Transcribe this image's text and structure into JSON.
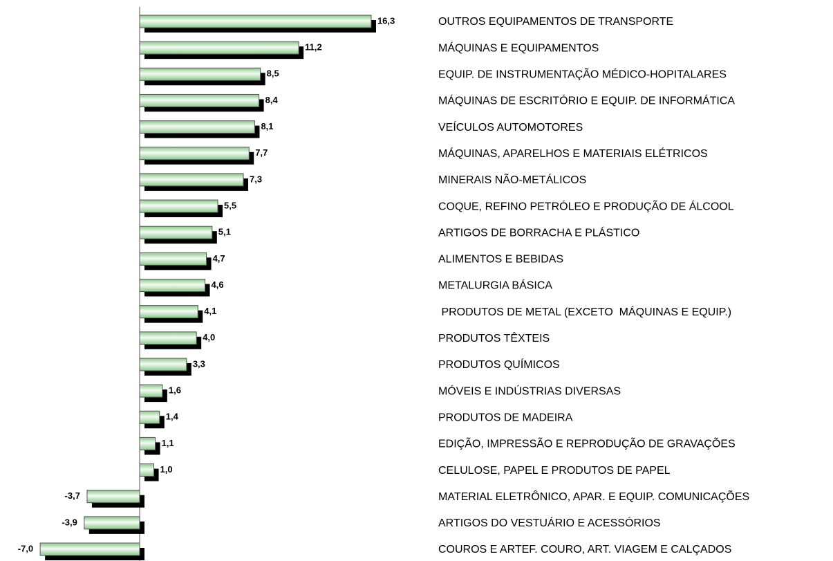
{
  "chart_data": {
    "type": "bar",
    "orientation": "horizontal",
    "categories": [
      "OUTROS EQUIPAMENTOS DE TRANSPORTE",
      "MÁQUINAS E EQUIPAMENTOS",
      "EQUIP. DE INSTRUMENTAÇÃO MÉDICO-HOPITALARES",
      "MÁQUINAS DE ESCRITÓRIO E EQUIP. DE INFORMÁTICA",
      "VEÍCULOS AUTOMOTORES",
      "MÁQUINAS, APARELHOS E MATERIAIS ELÉTRICOS",
      "MINERAIS NÃO-METÁLICOS",
      "COQUE, REFINO PETRÓLEO E PRODUÇÃO DE ÁLCOOL",
      "ARTIGOS DE BORRACHA E PLÁSTICO",
      "ALIMENTOS E BEBIDAS",
      "METALURGIA BÁSICA",
      " PRODUTOS DE METAL (EXCETO  MÁQUINAS E EQUIP.)",
      "PRODUTOS TÊXTEIS",
      "PRODUTOS QUÍMICOS",
      "MÓVEIS E INDÚSTRIAS DIVERSAS",
      "PRODUTOS DE MADEIRA",
      "EDIÇÃO, IMPRESSÃO E REPRODUÇÃO DE GRAVAÇÕES",
      "CELULOSE, PAPEL E PRODUTOS DE PAPEL",
      "MATERIAL ELETRÔNICO, APAR. E EQUIP. COMUNICAÇÕES",
      "ARTIGOS DO VESTUÁRIO E ACESSÓRIOS",
      "COUROS E ARTEF. COURO, ART. VIAGEM E CALÇADOS"
    ],
    "values": [
      16.3,
      11.2,
      8.5,
      8.4,
      8.1,
      7.7,
      7.3,
      5.5,
      5.1,
      4.7,
      4.6,
      4.1,
      4.0,
      3.3,
      1.6,
      1.4,
      1.1,
      1.0,
      -3.7,
      -3.9,
      -7.0
    ],
    "value_labels": [
      "16,3",
      "11,2",
      "8,5",
      "8,4",
      "8,1",
      "7,7",
      "7,3",
      "5,5",
      "5,1",
      "4,7",
      "4,6",
      "4,1",
      "4,0",
      "3,3",
      "1,6",
      "1,4",
      "1,1",
      "1,0",
      "-3,7",
      "-3,9",
      "-7,0"
    ],
    "color": "#b8e4b8"
  }
}
